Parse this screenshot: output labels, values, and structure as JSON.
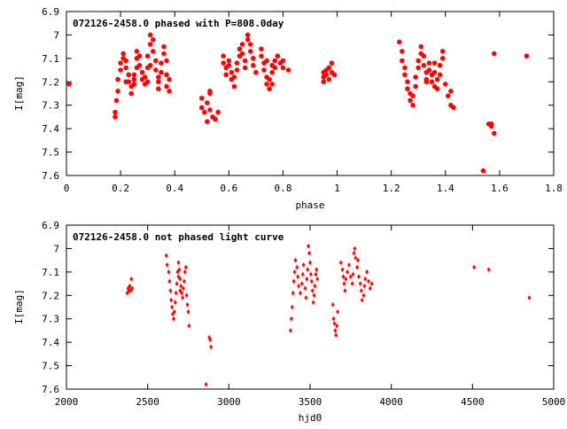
{
  "chart_data": [
    {
      "type": "scatter",
      "title": "072126-2458.0 phased with P=808.0day",
      "xlabel": "phase",
      "ylabel": "I[mag]",
      "xlim": [
        0,
        1.8
      ],
      "ylim": [
        7.6,
        6.9
      ],
      "y_inverted": true,
      "x_ticks": [
        "0",
        "0.2",
        "0.4",
        "0.6",
        "0.8",
        "1",
        "1.2",
        "1.4",
        "1.6",
        "1.8"
      ],
      "y_ticks": [
        "6.9",
        "7",
        "7.1",
        "7.2",
        "7.3",
        "7.4",
        "7.5",
        "7.6"
      ],
      "marker": "filled-circle",
      "color": "#ff0000",
      "points": [
        [
          0.01,
          7.21
        ],
        [
          0.18,
          7.35
        ],
        [
          0.18,
          7.33
        ],
        [
          0.185,
          7.28
        ],
        [
          0.19,
          7.24
        ],
        [
          0.19,
          7.19
        ],
        [
          0.2,
          7.15
        ],
        [
          0.2,
          7.12
        ],
        [
          0.21,
          7.1
        ],
        [
          0.21,
          7.08
        ],
        [
          0.22,
          7.11
        ],
        [
          0.22,
          7.14
        ],
        [
          0.23,
          7.17
        ],
        [
          0.23,
          7.2
        ],
        [
          0.24,
          7.22
        ],
        [
          0.24,
          7.25
        ],
        [
          0.25,
          7.21
        ],
        [
          0.25,
          7.17
        ],
        [
          0.26,
          7.14
        ],
        [
          0.26,
          7.1
        ],
        [
          0.26,
          7.07
        ],
        [
          0.27,
          7.09
        ],
        [
          0.27,
          7.13
        ],
        [
          0.28,
          7.16
        ],
        [
          0.28,
          7.19
        ],
        [
          0.29,
          7.21
        ],
        [
          0.29,
          7.18
        ],
        [
          0.3,
          7.14
        ],
        [
          0.3,
          7.09
        ],
        [
          0.31,
          7.04
        ],
        [
          0.31,
          7.0
        ],
        [
          0.32,
          7.02
        ],
        [
          0.32,
          7.07
        ],
        [
          0.33,
          7.11
        ],
        [
          0.33,
          7.15
        ],
        [
          0.34,
          7.18
        ],
        [
          0.34,
          7.2
        ],
        [
          0.35,
          7.16
        ],
        [
          0.35,
          7.12
        ],
        [
          0.36,
          7.08
        ],
        [
          0.36,
          7.05
        ],
        [
          0.37,
          7.11
        ],
        [
          0.37,
          7.17
        ],
        [
          0.37,
          7.22
        ],
        [
          0.38,
          7.24
        ],
        [
          0.38,
          7.19
        ],
        [
          0.34,
          7.23
        ],
        [
          0.3,
          7.2
        ],
        [
          0.31,
          7.13
        ],
        [
          0.22,
          7.2
        ],
        [
          0.25,
          7.19
        ],
        [
          0.5,
          7.27
        ],
        [
          0.5,
          7.31
        ],
        [
          0.51,
          7.33
        ],
        [
          0.52,
          7.37
        ],
        [
          0.52,
          7.29
        ],
        [
          0.53,
          7.25
        ],
        [
          0.53,
          7.32
        ],
        [
          0.54,
          7.35
        ],
        [
          0.55,
          7.36
        ],
        [
          0.56,
          7.33
        ],
        [
          0.53,
          7.24
        ],
        [
          0.58,
          7.09
        ],
        [
          0.58,
          7.12
        ],
        [
          0.59,
          7.14
        ],
        [
          0.59,
          7.17
        ],
        [
          0.6,
          7.11
        ],
        [
          0.6,
          7.13
        ],
        [
          0.61,
          7.16
        ],
        [
          0.61,
          7.19
        ],
        [
          0.62,
          7.22
        ],
        [
          0.62,
          7.18
        ],
        [
          0.63,
          7.15
        ],
        [
          0.63,
          7.12
        ],
        [
          0.64,
          7.09
        ],
        [
          0.64,
          7.06
        ],
        [
          0.65,
          7.04
        ],
        [
          0.65,
          7.08
        ],
        [
          0.66,
          7.11
        ],
        [
          0.66,
          7.14
        ],
        [
          0.67,
          7.02
        ],
        [
          0.67,
          7.0
        ],
        [
          0.68,
          7.04
        ],
        [
          0.68,
          7.07
        ],
        [
          0.69,
          7.1
        ],
        [
          0.69,
          7.13
        ],
        [
          0.7,
          7.16
        ],
        [
          0.72,
          7.06
        ],
        [
          0.72,
          7.09
        ],
        [
          0.73,
          7.12
        ],
        [
          0.73,
          7.15
        ],
        [
          0.74,
          7.18
        ],
        [
          0.74,
          7.21
        ],
        [
          0.75,
          7.23
        ],
        [
          0.75,
          7.19
        ],
        [
          0.76,
          7.16
        ],
        [
          0.76,
          7.13
        ],
        [
          0.77,
          7.11
        ],
        [
          0.77,
          7.14
        ],
        [
          0.78,
          7.09
        ],
        [
          0.79,
          7.12
        ],
        [
          0.8,
          7.14
        ],
        [
          0.8,
          7.11
        ],
        [
          0.82,
          7.15
        ],
        [
          0.76,
          7.21
        ],
        [
          0.74,
          7.11
        ],
        [
          0.95,
          7.2
        ],
        [
          0.95,
          7.18
        ],
        [
          0.96,
          7.17
        ],
        [
          0.96,
          7.15
        ],
        [
          0.97,
          7.19
        ],
        [
          0.97,
          7.14
        ],
        [
          0.98,
          7.12
        ],
        [
          0.98,
          7.16
        ],
        [
          0.99,
          7.17
        ],
        [
          0.95,
          7.16
        ],
        [
          1.23,
          7.03
        ],
        [
          1.24,
          7.07
        ],
        [
          1.24,
          7.11
        ],
        [
          1.25,
          7.14
        ],
        [
          1.25,
          7.17
        ],
        [
          1.26,
          7.2
        ],
        [
          1.26,
          7.23
        ],
        [
          1.27,
          7.25
        ],
        [
          1.27,
          7.28
        ],
        [
          1.28,
          7.3
        ],
        [
          1.28,
          7.26
        ],
        [
          1.29,
          7.22
        ],
        [
          1.29,
          7.18
        ],
        [
          1.3,
          7.14
        ],
        [
          1.3,
          7.11
        ],
        [
          1.31,
          7.08
        ],
        [
          1.31,
          7.05
        ],
        [
          1.32,
          7.09
        ],
        [
          1.32,
          7.13
        ],
        [
          1.33,
          7.16
        ],
        [
          1.33,
          7.19
        ],
        [
          1.34,
          7.15
        ],
        [
          1.34,
          7.12
        ],
        [
          1.35,
          7.17
        ],
        [
          1.35,
          7.2
        ],
        [
          1.36,
          7.16
        ],
        [
          1.36,
          7.12
        ],
        [
          1.37,
          7.19
        ],
        [
          1.37,
          7.23
        ],
        [
          1.38,
          7.17
        ],
        [
          1.38,
          7.13
        ],
        [
          1.39,
          7.1
        ],
        [
          1.39,
          7.07
        ],
        [
          1.4,
          7.21
        ],
        [
          1.41,
          7.26
        ],
        [
          1.42,
          7.3
        ],
        [
          1.43,
          7.31
        ],
        [
          1.42,
          7.24
        ],
        [
          1.33,
          7.2
        ],
        [
          1.36,
          7.22
        ],
        [
          1.54,
          7.58
        ],
        [
          1.56,
          7.38
        ],
        [
          1.57,
          7.39
        ],
        [
          1.57,
          7.38
        ],
        [
          1.58,
          7.42
        ],
        [
          1.58,
          7.08
        ],
        [
          1.7,
          7.09
        ]
      ]
    },
    {
      "type": "scatter",
      "title": "072126-2458.0 not phased light curve",
      "xlabel": "hjd0",
      "ylabel": "I[mag]",
      "xlim": [
        2000,
        5000
      ],
      "ylim": [
        7.6,
        6.9
      ],
      "y_inverted": true,
      "x_ticks": [
        "2000",
        "2500",
        "3000",
        "3500",
        "4000",
        "4500",
        "5000"
      ],
      "y_ticks": [
        "6.9",
        "7",
        "7.1",
        "7.2",
        "7.3",
        "7.4",
        "7.5",
        "7.6"
      ],
      "marker": "filled-diamond",
      "color": "#ff0000",
      "points": [
        [
          2375,
          7.19
        ],
        [
          2380,
          7.17
        ],
        [
          2385,
          7.18
        ],
        [
          2390,
          7.16
        ],
        [
          2395,
          7.18
        ],
        [
          2400,
          7.13
        ],
        [
          2405,
          7.17
        ],
        [
          2615,
          7.03
        ],
        [
          2620,
          7.07
        ],
        [
          2630,
          7.1
        ],
        [
          2635,
          7.14
        ],
        [
          2640,
          7.18
        ],
        [
          2645,
          7.22
        ],
        [
          2650,
          7.25
        ],
        [
          2655,
          7.28
        ],
        [
          2660,
          7.3
        ],
        [
          2665,
          7.27
        ],
        [
          2670,
          7.23
        ],
        [
          2675,
          7.19
        ],
        [
          2680,
          7.15
        ],
        [
          2685,
          7.1
        ],
        [
          2690,
          7.06
        ],
        [
          2695,
          7.09
        ],
        [
          2700,
          7.13
        ],
        [
          2705,
          7.16
        ],
        [
          2710,
          7.19
        ],
        [
          2715,
          7.21
        ],
        [
          2720,
          7.17
        ],
        [
          2725,
          7.14
        ],
        [
          2730,
          7.1
        ],
        [
          2735,
          7.08
        ],
        [
          2740,
          7.2
        ],
        [
          2745,
          7.24
        ],
        [
          2750,
          7.27
        ],
        [
          2755,
          7.33
        ],
        [
          2700,
          7.18
        ],
        [
          2690,
          7.12
        ],
        [
          2860,
          7.58
        ],
        [
          2880,
          7.38
        ],
        [
          2885,
          7.39
        ],
        [
          2890,
          7.42
        ],
        [
          3380,
          7.35
        ],
        [
          3385,
          7.3
        ],
        [
          3390,
          7.25
        ],
        [
          3395,
          7.19
        ],
        [
          3400,
          7.14
        ],
        [
          3405,
          7.1
        ],
        [
          3410,
          7.05
        ],
        [
          3420,
          7.08
        ],
        [
          3425,
          7.12
        ],
        [
          3430,
          7.16
        ],
        [
          3440,
          7.19
        ],
        [
          3450,
          7.15
        ],
        [
          3455,
          7.11
        ],
        [
          3460,
          7.07
        ],
        [
          3470,
          7.17
        ],
        [
          3475,
          7.21
        ],
        [
          3480,
          7.13
        ],
        [
          3485,
          7.09
        ],
        [
          3490,
          6.99
        ],
        [
          3495,
          7.02
        ],
        [
          3500,
          7.06
        ],
        [
          3505,
          7.11
        ],
        [
          3510,
          7.14
        ],
        [
          3515,
          7.18
        ],
        [
          3520,
          7.23
        ],
        [
          3525,
          7.2
        ],
        [
          3530,
          7.16
        ],
        [
          3535,
          7.11
        ],
        [
          3540,
          7.09
        ],
        [
          3545,
          7.13
        ],
        [
          3640,
          7.24
        ],
        [
          3645,
          7.3
        ],
        [
          3650,
          7.32
        ],
        [
          3655,
          7.35
        ],
        [
          3660,
          7.37
        ],
        [
          3665,
          7.33
        ],
        [
          3670,
          7.27
        ],
        [
          3690,
          7.06
        ],
        [
          3700,
          7.09
        ],
        [
          3705,
          7.12
        ],
        [
          3710,
          7.15
        ],
        [
          3715,
          7.18
        ],
        [
          3720,
          7.13
        ],
        [
          3730,
          7.1
        ],
        [
          3740,
          7.07
        ],
        [
          3750,
          7.12
        ],
        [
          3760,
          7.15
        ],
        [
          3765,
          7.11
        ],
        [
          3770,
          7.02
        ],
        [
          3775,
          7.0
        ],
        [
          3780,
          7.04
        ],
        [
          3790,
          7.08
        ],
        [
          3800,
          7.12
        ],
        [
          3810,
          7.15
        ],
        [
          3815,
          7.18
        ],
        [
          3820,
          7.22
        ],
        [
          3830,
          7.2
        ],
        [
          3835,
          7.16
        ],
        [
          3840,
          7.13
        ],
        [
          3850,
          7.1
        ],
        [
          3860,
          7.14
        ],
        [
          3870,
          7.17
        ],
        [
          3880,
          7.15
        ],
        [
          3795,
          7.05
        ],
        [
          4510,
          7.08
        ],
        [
          4600,
          7.09
        ],
        [
          4850,
          7.21
        ]
      ]
    }
  ]
}
